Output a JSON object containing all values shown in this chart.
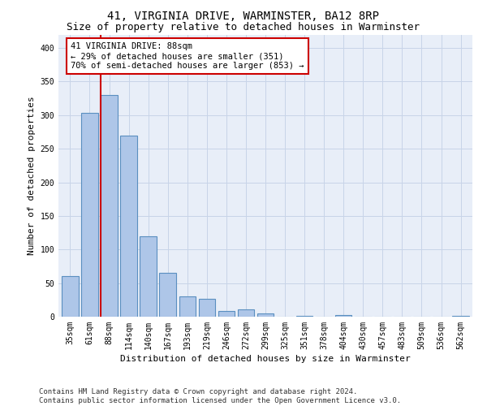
{
  "title1": "41, VIRGINIA DRIVE, WARMINSTER, BA12 8RP",
  "title2": "Size of property relative to detached houses in Warminster",
  "xlabel": "Distribution of detached houses by size in Warminster",
  "ylabel": "Number of detached properties",
  "categories": [
    "35sqm",
    "61sqm",
    "88sqm",
    "114sqm",
    "140sqm",
    "167sqm",
    "193sqm",
    "219sqm",
    "246sqm",
    "272sqm",
    "299sqm",
    "325sqm",
    "351sqm",
    "378sqm",
    "404sqm",
    "430sqm",
    "457sqm",
    "483sqm",
    "509sqm",
    "536sqm",
    "562sqm"
  ],
  "values": [
    60,
    303,
    330,
    270,
    120,
    65,
    30,
    27,
    8,
    11,
    5,
    0,
    1,
    0,
    2,
    0,
    0,
    0,
    0,
    0,
    1
  ],
  "bar_color": "#aec6e8",
  "bar_edge_color": "#5a8fc0",
  "vline_x_index": 2,
  "vline_color": "#cc0000",
  "annotation_text": "41 VIRGINIA DRIVE: 88sqm\n← 29% of detached houses are smaller (351)\n70% of semi-detached houses are larger (853) →",
  "annotation_box_color": "#ffffff",
  "annotation_box_edge_color": "#cc0000",
  "ylim": [
    0,
    420
  ],
  "yticks": [
    0,
    50,
    100,
    150,
    200,
    250,
    300,
    350,
    400
  ],
  "grid_color": "#c8d4e8",
  "background_color": "#e8eef8",
  "footnote": "Contains HM Land Registry data © Crown copyright and database right 2024.\nContains public sector information licensed under the Open Government Licence v3.0.",
  "title1_fontsize": 10,
  "title2_fontsize": 9,
  "xlabel_fontsize": 8,
  "ylabel_fontsize": 8,
  "tick_fontsize": 7,
  "annotation_fontsize": 7.5,
  "footnote_fontsize": 6.5
}
